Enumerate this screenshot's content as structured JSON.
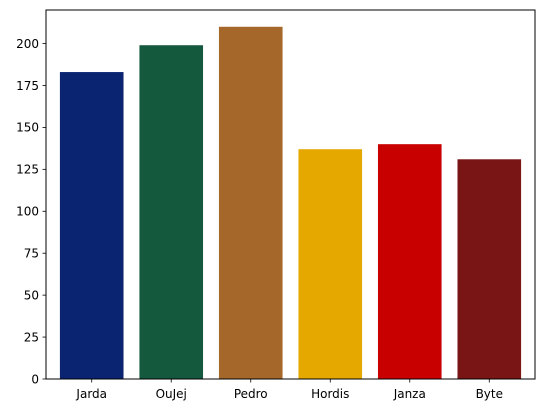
{
  "chart_data": {
    "type": "bar",
    "categories": [
      "Jarda",
      "OuJej",
      "Pedro",
      "Hordis",
      "Janza",
      "Byte"
    ],
    "values": [
      183,
      199,
      210,
      137,
      140,
      131
    ],
    "colors": [
      "#0a2472",
      "#14583d",
      "#a5682a",
      "#e4a800",
      "#c90000",
      "#7a1515"
    ],
    "ylim": [
      0,
      220
    ],
    "yticks": [
      "0",
      "25",
      "50",
      "75",
      "100",
      "125",
      "150",
      "175",
      "200"
    ],
    "title": "",
    "xlabel": "",
    "ylabel": "",
    "grid": false
  }
}
